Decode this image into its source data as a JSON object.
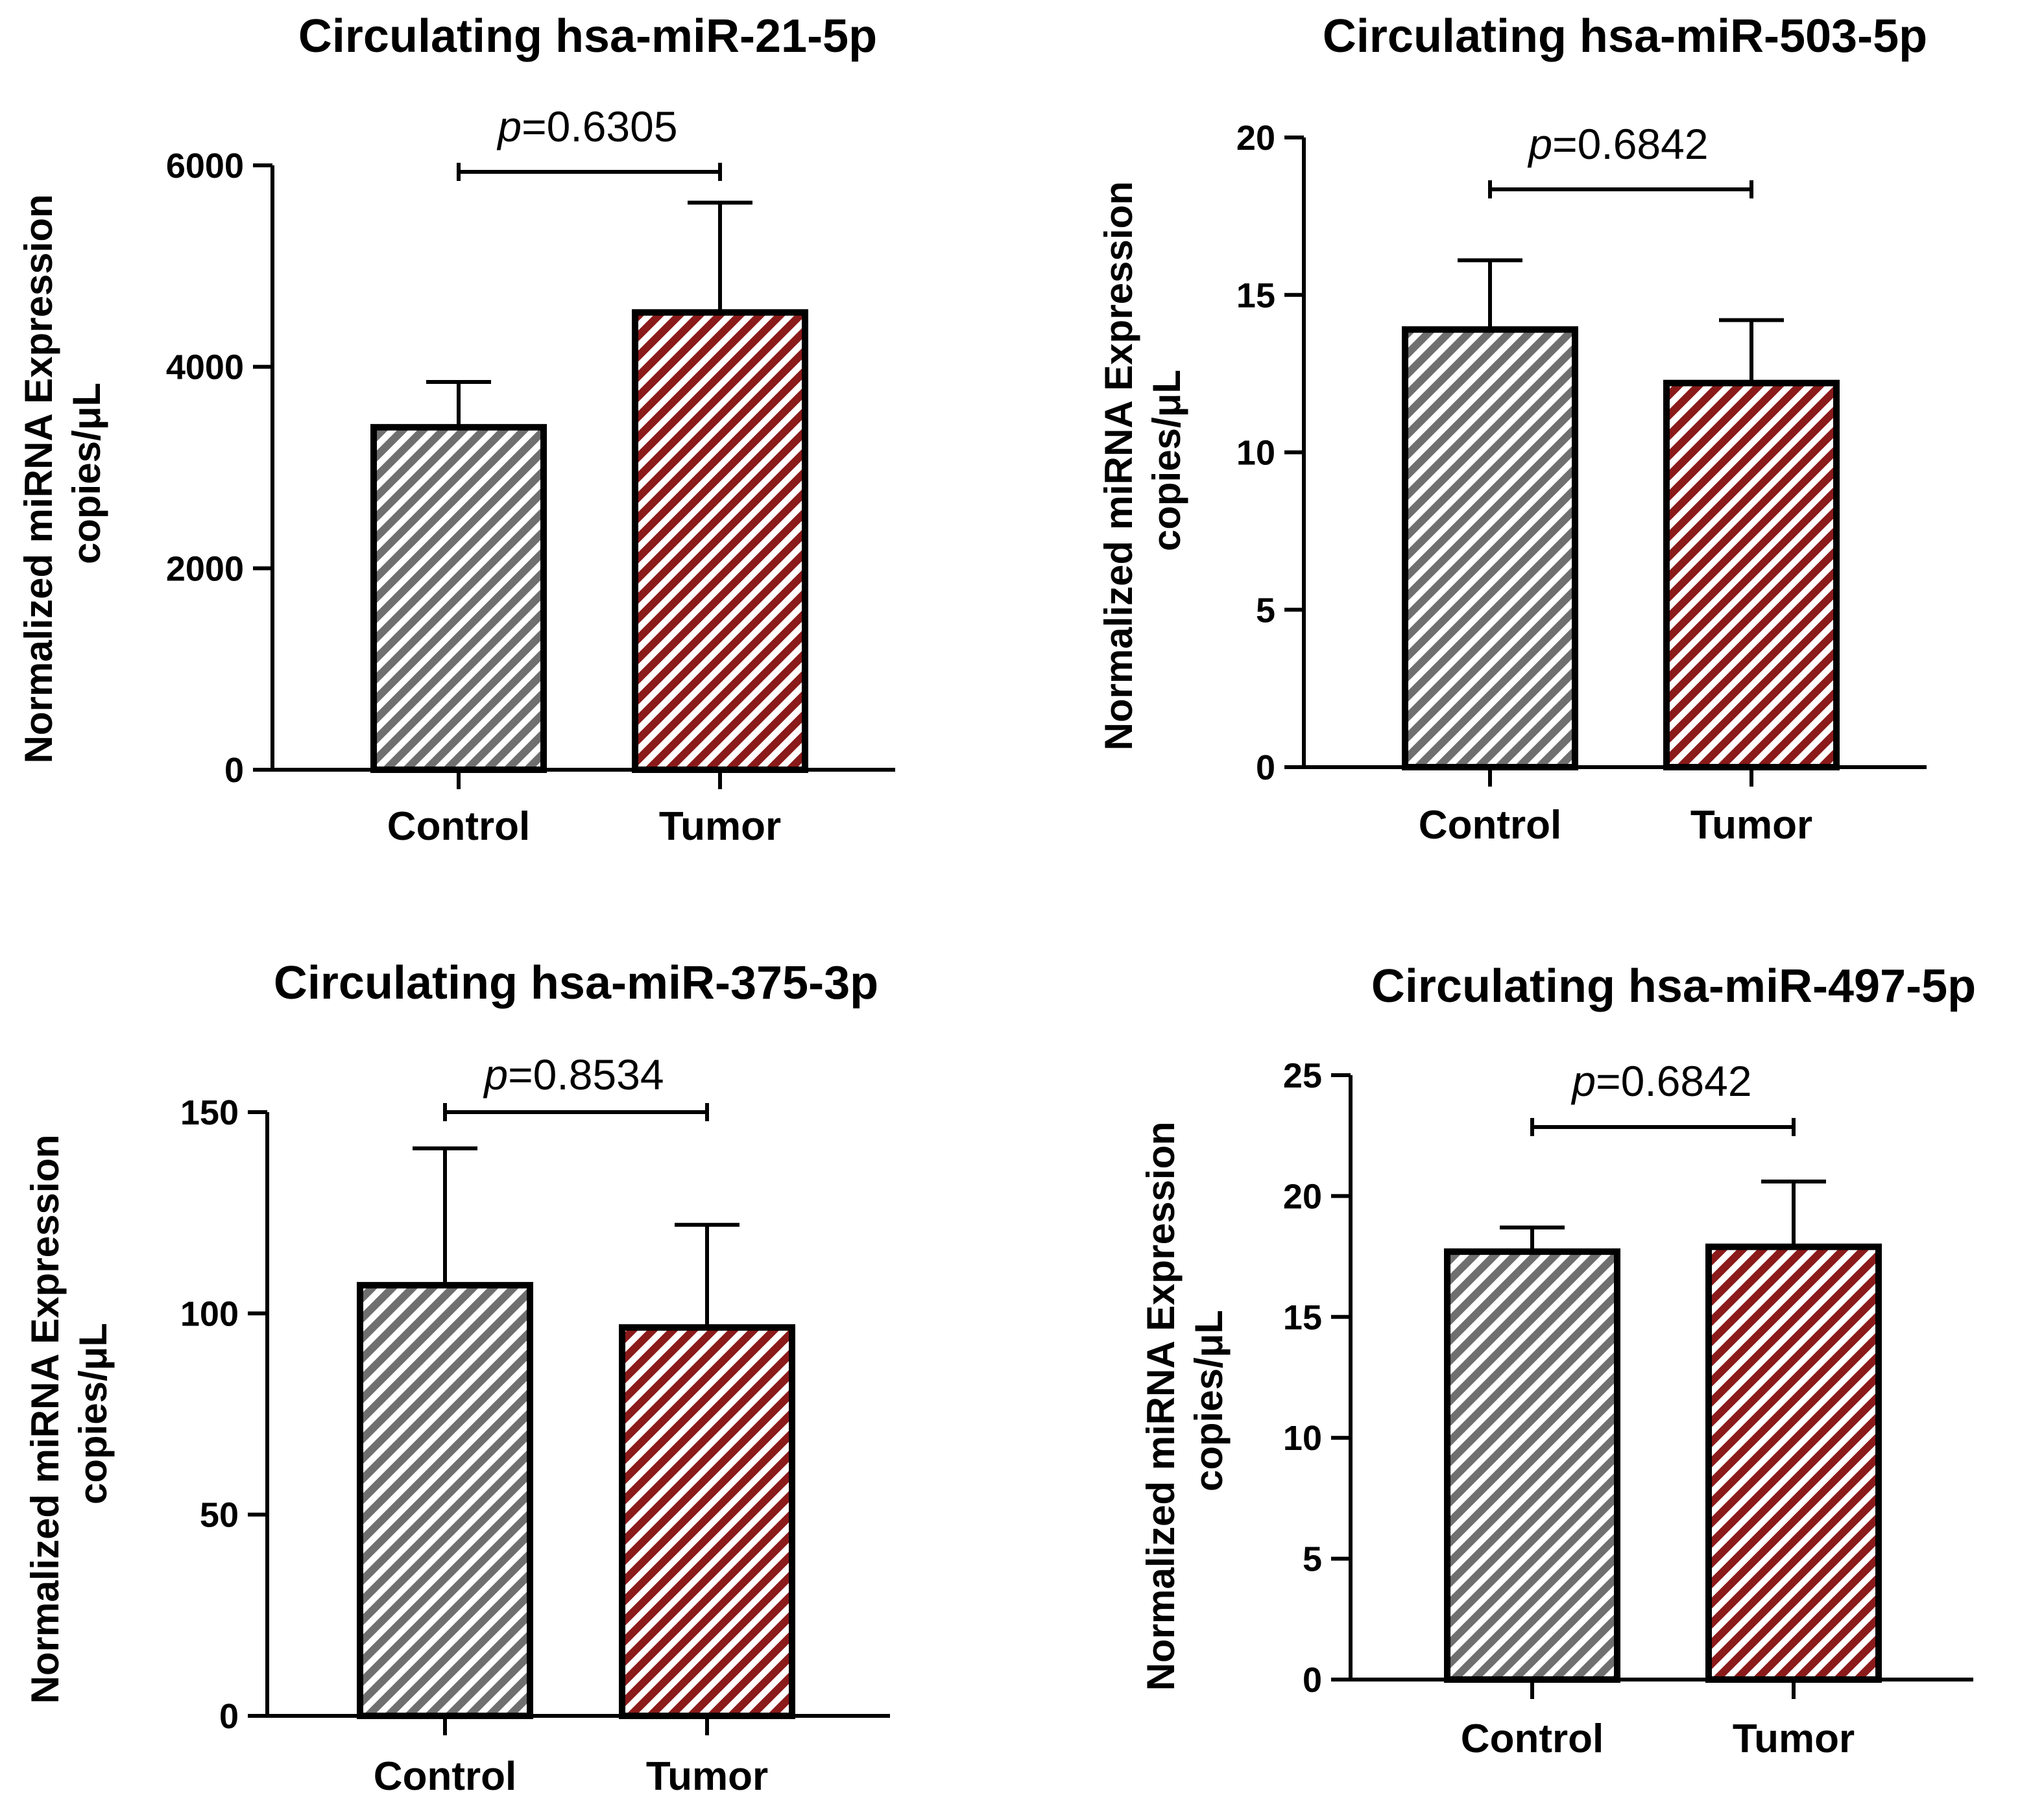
{
  "chart_data": [
    {
      "type": "bar",
      "title": "Circulating hsa-miR-21-5p",
      "ylabel_lines": [
        "Normalized miRNA Expression",
        "copies/μL"
      ],
      "categories": [
        "Control",
        "Tumor"
      ],
      "values": [
        3400,
        4540
      ],
      "errors": [
        450,
        1090
      ],
      "ylim": [
        0,
        6000
      ],
      "yticks": [
        0,
        2000,
        4000,
        6000
      ],
      "ytick_labels": [
        "0",
        "2000",
        "4000",
        "6000"
      ],
      "pvalue_label": {
        "p": "p",
        "value": "=0.6305"
      },
      "bar_colors": [
        "#6f6f6f",
        "#8b1a1a"
      ],
      "bar_patterns": [
        "hatch-gray",
        "hatch-red"
      ]
    },
    {
      "type": "bar",
      "title": "Circulating hsa-miR-503-5p",
      "ylabel_lines": [
        "Normalized miRNA Expression",
        "copies/μL"
      ],
      "categories": [
        "Control",
        "Tumor"
      ],
      "values": [
        13.9,
        12.2
      ],
      "errors": [
        2.2,
        2.0
      ],
      "ylim": [
        0,
        20
      ],
      "yticks": [
        0,
        5,
        10,
        15,
        20
      ],
      "ytick_labels": [
        "0",
        "5",
        "10",
        "15",
        "20"
      ],
      "pvalue_label": {
        "p": "p",
        "value": "=0.6842"
      },
      "bar_colors": [
        "#6f6f6f",
        "#8b1a1a"
      ],
      "bar_patterns": [
        "hatch-gray",
        "hatch-red"
      ]
    },
    {
      "type": "bar",
      "title": "Circulating hsa-miR-375-3p",
      "ylabel_lines": [
        "Normalized miRNA Expression",
        "copies/μL"
      ],
      "categories": [
        "Control",
        "Tumor"
      ],
      "values": [
        107,
        96.5
      ],
      "errors": [
        34,
        25.5
      ],
      "ylim": [
        0,
        150
      ],
      "yticks": [
        0,
        50,
        100,
        150
      ],
      "ytick_labels": [
        "0",
        "50",
        "100",
        "150"
      ],
      "pvalue_label": {
        "p": "p",
        "value": "=0.8534"
      },
      "bar_colors": [
        "#6f6f6f",
        "#8b1a1a"
      ],
      "bar_patterns": [
        "hatch-gray",
        "hatch-red"
      ]
    },
    {
      "type": "bar",
      "title": "Circulating hsa-miR-497-5p",
      "ylabel_lines": [
        "Normalized miRNA Expression",
        "copies/μL"
      ],
      "categories": [
        "Control",
        "Tumor"
      ],
      "values": [
        17.7,
        17.9
      ],
      "errors": [
        1.0,
        2.7
      ],
      "ylim": [
        0,
        25
      ],
      "yticks": [
        0,
        5,
        10,
        15,
        20,
        25
      ],
      "ytick_labels": [
        "0",
        "5",
        "10",
        "15",
        "20",
        "25"
      ],
      "pvalue_label": {
        "p": "p",
        "value": "=0.6842"
      },
      "bar_colors": [
        "#6f6f6f",
        "#8b1a1a"
      ],
      "bar_patterns": [
        "hatch-gray",
        "hatch-red"
      ]
    }
  ]
}
